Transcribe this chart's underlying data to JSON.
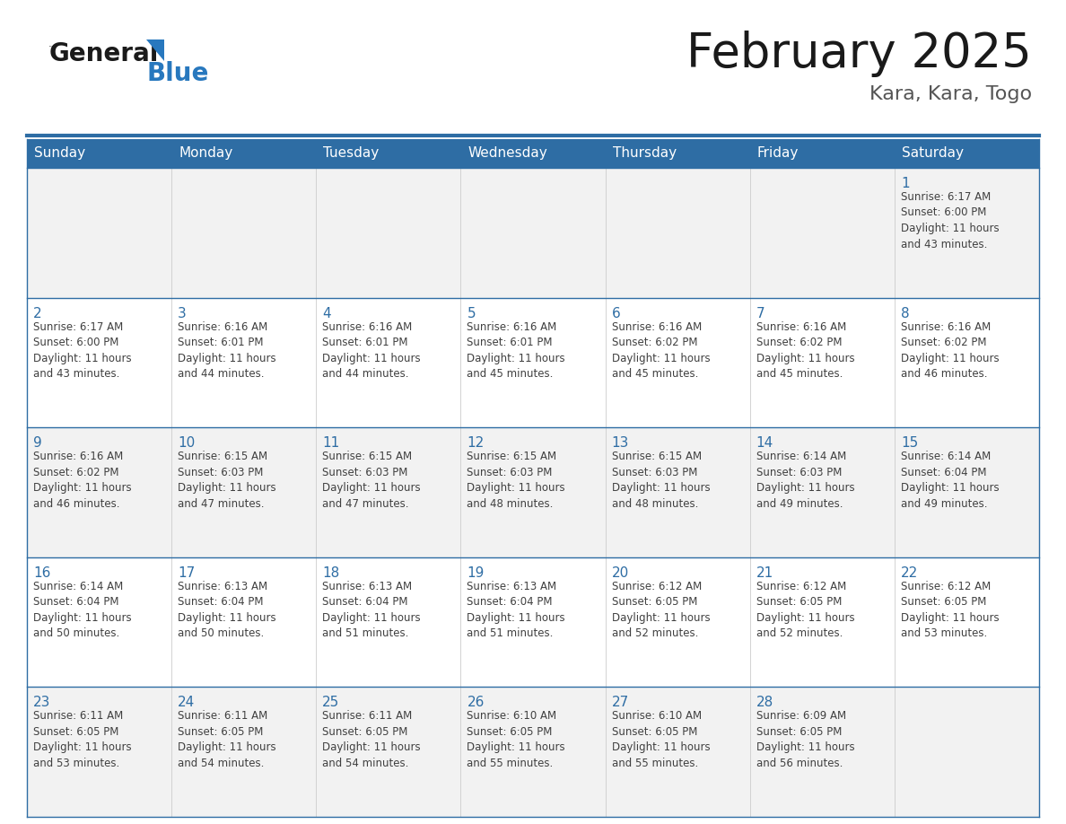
{
  "title": "February 2025",
  "subtitle": "Kara, Kara, Togo",
  "days_of_week": [
    "Sunday",
    "Monday",
    "Tuesday",
    "Wednesday",
    "Thursday",
    "Friday",
    "Saturday"
  ],
  "header_bg": "#2E6DA4",
  "header_text_color": "#FFFFFF",
  "cell_bg_white": "#FFFFFF",
  "cell_bg_gray": "#F2F2F2",
  "border_color": "#2E6DA4",
  "day_number_color": "#2E6DA4",
  "text_color": "#404040",
  "title_color": "#1a1a1a",
  "subtitle_color": "#555555",
  "logo_general_color": "#1a1a1a",
  "logo_blue_color": "#2878BE",
  "calendar": [
    [
      null,
      null,
      null,
      null,
      null,
      null,
      {
        "day": 1,
        "sunrise": "6:17 AM",
        "sunset": "6:00 PM",
        "daylight": "11 hours\nand 43 minutes."
      }
    ],
    [
      {
        "day": 2,
        "sunrise": "6:17 AM",
        "sunset": "6:00 PM",
        "daylight": "11 hours\nand 43 minutes."
      },
      {
        "day": 3,
        "sunrise": "6:16 AM",
        "sunset": "6:01 PM",
        "daylight": "11 hours\nand 44 minutes."
      },
      {
        "day": 4,
        "sunrise": "6:16 AM",
        "sunset": "6:01 PM",
        "daylight": "11 hours\nand 44 minutes."
      },
      {
        "day": 5,
        "sunrise": "6:16 AM",
        "sunset": "6:01 PM",
        "daylight": "11 hours\nand 45 minutes."
      },
      {
        "day": 6,
        "sunrise": "6:16 AM",
        "sunset": "6:02 PM",
        "daylight": "11 hours\nand 45 minutes."
      },
      {
        "day": 7,
        "sunrise": "6:16 AM",
        "sunset": "6:02 PM",
        "daylight": "11 hours\nand 45 minutes."
      },
      {
        "day": 8,
        "sunrise": "6:16 AM",
        "sunset": "6:02 PM",
        "daylight": "11 hours\nand 46 minutes."
      }
    ],
    [
      {
        "day": 9,
        "sunrise": "6:16 AM",
        "sunset": "6:02 PM",
        "daylight": "11 hours\nand 46 minutes."
      },
      {
        "day": 10,
        "sunrise": "6:15 AM",
        "sunset": "6:03 PM",
        "daylight": "11 hours\nand 47 minutes."
      },
      {
        "day": 11,
        "sunrise": "6:15 AM",
        "sunset": "6:03 PM",
        "daylight": "11 hours\nand 47 minutes."
      },
      {
        "day": 12,
        "sunrise": "6:15 AM",
        "sunset": "6:03 PM",
        "daylight": "11 hours\nand 48 minutes."
      },
      {
        "day": 13,
        "sunrise": "6:15 AM",
        "sunset": "6:03 PM",
        "daylight": "11 hours\nand 48 minutes."
      },
      {
        "day": 14,
        "sunrise": "6:14 AM",
        "sunset": "6:03 PM",
        "daylight": "11 hours\nand 49 minutes."
      },
      {
        "day": 15,
        "sunrise": "6:14 AM",
        "sunset": "6:04 PM",
        "daylight": "11 hours\nand 49 minutes."
      }
    ],
    [
      {
        "day": 16,
        "sunrise": "6:14 AM",
        "sunset": "6:04 PM",
        "daylight": "11 hours\nand 50 minutes."
      },
      {
        "day": 17,
        "sunrise": "6:13 AM",
        "sunset": "6:04 PM",
        "daylight": "11 hours\nand 50 minutes."
      },
      {
        "day": 18,
        "sunrise": "6:13 AM",
        "sunset": "6:04 PM",
        "daylight": "11 hours\nand 51 minutes."
      },
      {
        "day": 19,
        "sunrise": "6:13 AM",
        "sunset": "6:04 PM",
        "daylight": "11 hours\nand 51 minutes."
      },
      {
        "day": 20,
        "sunrise": "6:12 AM",
        "sunset": "6:05 PM",
        "daylight": "11 hours\nand 52 minutes."
      },
      {
        "day": 21,
        "sunrise": "6:12 AM",
        "sunset": "6:05 PM",
        "daylight": "11 hours\nand 52 minutes."
      },
      {
        "day": 22,
        "sunrise": "6:12 AM",
        "sunset": "6:05 PM",
        "daylight": "11 hours\nand 53 minutes."
      }
    ],
    [
      {
        "day": 23,
        "sunrise": "6:11 AM",
        "sunset": "6:05 PM",
        "daylight": "11 hours\nand 53 minutes."
      },
      {
        "day": 24,
        "sunrise": "6:11 AM",
        "sunset": "6:05 PM",
        "daylight": "11 hours\nand 54 minutes."
      },
      {
        "day": 25,
        "sunrise": "6:11 AM",
        "sunset": "6:05 PM",
        "daylight": "11 hours\nand 54 minutes."
      },
      {
        "day": 26,
        "sunrise": "6:10 AM",
        "sunset": "6:05 PM",
        "daylight": "11 hours\nand 55 minutes."
      },
      {
        "day": 27,
        "sunrise": "6:10 AM",
        "sunset": "6:05 PM",
        "daylight": "11 hours\nand 55 minutes."
      },
      {
        "day": 28,
        "sunrise": "6:09 AM",
        "sunset": "6:05 PM",
        "daylight": "11 hours\nand 56 minutes."
      },
      null
    ]
  ]
}
